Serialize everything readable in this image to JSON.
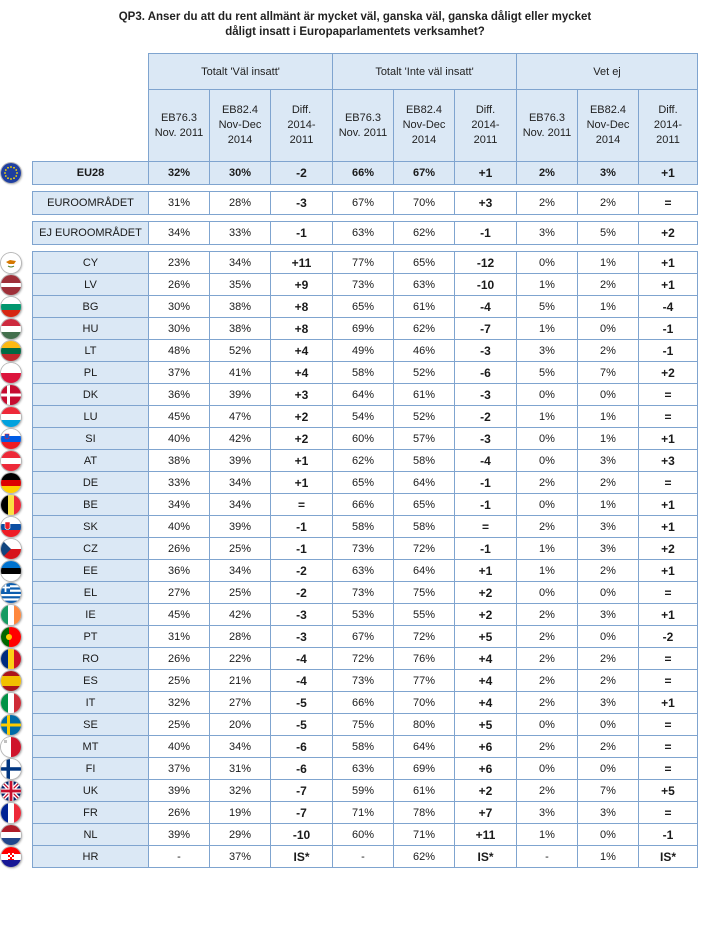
{
  "title_line1": "QP3. Anser du att du rent allmänt är mycket väl, ganska väl, ganska dåligt eller mycket",
  "title_line2": "dåligt insatt i Europaparlamentets verksamhet?",
  "groups": [
    "Totalt 'Väl insatt'",
    "Totalt 'Inte väl insatt'",
    "Vet ej"
  ],
  "subheaders": [
    {
      "l1": "EB76.3",
      "l2": "Nov. 2011"
    },
    {
      "l1": "EB82.4",
      "l2": "Nov-Dec",
      "l3": "2014"
    },
    {
      "l1": "Diff.",
      "l2": "2014-",
      "l3": "2011"
    },
    {
      "l1": "EB76.3",
      "l2": "Nov. 2011"
    },
    {
      "l1": "EB82.4",
      "l2": "Nov-Dec",
      "l3": "2014"
    },
    {
      "l1": "Diff.",
      "l2": "2014-",
      "l3": "2011"
    },
    {
      "l1": "EB76.3",
      "l2": "Nov. 2011"
    },
    {
      "l1": "EB82.4",
      "l2": "Nov-Dec",
      "l3": "2014"
    },
    {
      "l1": "Diff.",
      "l2": "2014-",
      "l3": "2011"
    }
  ],
  "eu": {
    "label": "EU28",
    "flag": "eu",
    "values": [
      "32%",
      "30%",
      "-2",
      "66%",
      "67%",
      "+1",
      "2%",
      "3%",
      "+1"
    ]
  },
  "aggregates": [
    {
      "label": "EUROOMRÅDET",
      "values": [
        "31%",
        "28%",
        "-3",
        "67%",
        "70%",
        "+3",
        "2%",
        "2%",
        "="
      ]
    },
    {
      "label": "EJ EUROOMRÅDET",
      "values": [
        "34%",
        "33%",
        "-1",
        "63%",
        "62%",
        "-1",
        "3%",
        "5%",
        "+2"
      ]
    }
  ],
  "countries": [
    {
      "label": "CY",
      "flag": "cy",
      "values": [
        "23%",
        "34%",
        "+11",
        "77%",
        "65%",
        "-12",
        "0%",
        "1%",
        "+1"
      ]
    },
    {
      "label": "LV",
      "flag": "lv",
      "values": [
        "26%",
        "35%",
        "+9",
        "73%",
        "63%",
        "-10",
        "1%",
        "2%",
        "+1"
      ]
    },
    {
      "label": "BG",
      "flag": "bg",
      "values": [
        "30%",
        "38%",
        "+8",
        "65%",
        "61%",
        "-4",
        "5%",
        "1%",
        "-4"
      ]
    },
    {
      "label": "HU",
      "flag": "hu",
      "values": [
        "30%",
        "38%",
        "+8",
        "69%",
        "62%",
        "-7",
        "1%",
        "0%",
        "-1"
      ]
    },
    {
      "label": "LT",
      "flag": "lt",
      "values": [
        "48%",
        "52%",
        "+4",
        "49%",
        "46%",
        "-3",
        "3%",
        "2%",
        "-1"
      ]
    },
    {
      "label": "PL",
      "flag": "pl",
      "values": [
        "37%",
        "41%",
        "+4",
        "58%",
        "52%",
        "-6",
        "5%",
        "7%",
        "+2"
      ]
    },
    {
      "label": "DK",
      "flag": "dk",
      "values": [
        "36%",
        "39%",
        "+3",
        "64%",
        "61%",
        "-3",
        "0%",
        "0%",
        "="
      ]
    },
    {
      "label": "LU",
      "flag": "lu",
      "values": [
        "45%",
        "47%",
        "+2",
        "54%",
        "52%",
        "-2",
        "1%",
        "1%",
        "="
      ]
    },
    {
      "label": "SI",
      "flag": "si",
      "values": [
        "40%",
        "42%",
        "+2",
        "60%",
        "57%",
        "-3",
        "0%",
        "1%",
        "+1"
      ]
    },
    {
      "label": "AT",
      "flag": "at",
      "values": [
        "38%",
        "39%",
        "+1",
        "62%",
        "58%",
        "-4",
        "0%",
        "3%",
        "+3"
      ]
    },
    {
      "label": "DE",
      "flag": "de",
      "values": [
        "33%",
        "34%",
        "+1",
        "65%",
        "64%",
        "-1",
        "2%",
        "2%",
        "="
      ]
    },
    {
      "label": "BE",
      "flag": "be",
      "values": [
        "34%",
        "34%",
        "=",
        "66%",
        "65%",
        "-1",
        "0%",
        "1%",
        "+1"
      ]
    },
    {
      "label": "SK",
      "flag": "sk",
      "values": [
        "40%",
        "39%",
        "-1",
        "58%",
        "58%",
        "=",
        "2%",
        "3%",
        "+1"
      ]
    },
    {
      "label": "CZ",
      "flag": "cz",
      "values": [
        "26%",
        "25%",
        "-1",
        "73%",
        "72%",
        "-1",
        "1%",
        "3%",
        "+2"
      ]
    },
    {
      "label": "EE",
      "flag": "ee",
      "values": [
        "36%",
        "34%",
        "-2",
        "63%",
        "64%",
        "+1",
        "1%",
        "2%",
        "+1"
      ]
    },
    {
      "label": "EL",
      "flag": "el",
      "values": [
        "27%",
        "25%",
        "-2",
        "73%",
        "75%",
        "+2",
        "0%",
        "0%",
        "="
      ]
    },
    {
      "label": "IE",
      "flag": "ie",
      "values": [
        "45%",
        "42%",
        "-3",
        "53%",
        "55%",
        "+2",
        "2%",
        "3%",
        "+1"
      ]
    },
    {
      "label": "PT",
      "flag": "pt",
      "values": [
        "31%",
        "28%",
        "-3",
        "67%",
        "72%",
        "+5",
        "2%",
        "0%",
        "-2"
      ]
    },
    {
      "label": "RO",
      "flag": "ro",
      "values": [
        "26%",
        "22%",
        "-4",
        "72%",
        "76%",
        "+4",
        "2%",
        "2%",
        "="
      ]
    },
    {
      "label": "ES",
      "flag": "es",
      "values": [
        "25%",
        "21%",
        "-4",
        "73%",
        "77%",
        "+4",
        "2%",
        "2%",
        "="
      ]
    },
    {
      "label": "IT",
      "flag": "it",
      "values": [
        "32%",
        "27%",
        "-5",
        "66%",
        "70%",
        "+4",
        "2%",
        "3%",
        "+1"
      ]
    },
    {
      "label": "SE",
      "flag": "se",
      "values": [
        "25%",
        "20%",
        "-5",
        "75%",
        "80%",
        "+5",
        "0%",
        "0%",
        "="
      ]
    },
    {
      "label": "MT",
      "flag": "mt",
      "values": [
        "40%",
        "34%",
        "-6",
        "58%",
        "64%",
        "+6",
        "2%",
        "2%",
        "="
      ]
    },
    {
      "label": "FI",
      "flag": "fi",
      "values": [
        "37%",
        "31%",
        "-6",
        "63%",
        "69%",
        "+6",
        "0%",
        "0%",
        "="
      ]
    },
    {
      "label": "UK",
      "flag": "uk",
      "values": [
        "39%",
        "32%",
        "-7",
        "59%",
        "61%",
        "+2",
        "2%",
        "7%",
        "+5"
      ]
    },
    {
      "label": "FR",
      "flag": "fr",
      "values": [
        "26%",
        "19%",
        "-7",
        "71%",
        "78%",
        "+7",
        "3%",
        "3%",
        "="
      ]
    },
    {
      "label": "NL",
      "flag": "nl",
      "values": [
        "39%",
        "29%",
        "-10",
        "60%",
        "71%",
        "+11",
        "1%",
        "0%",
        "-1"
      ]
    },
    {
      "label": "HR",
      "flag": "hr",
      "values": [
        "-",
        "37%",
        "IS*",
        "-",
        "62%",
        "IS*",
        "-",
        "1%",
        "IS*"
      ]
    }
  ]
}
